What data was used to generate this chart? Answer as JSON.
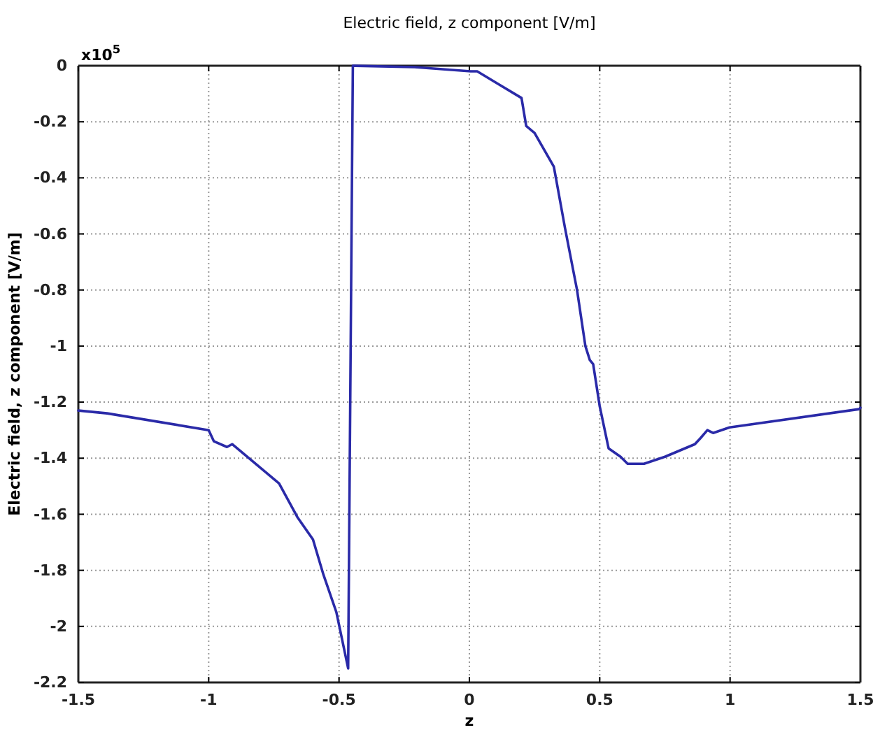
{
  "chart_data": {
    "type": "line",
    "title": "Electric field, z component [V/m]",
    "xlabel": "z",
    "ylabel": "Electric field, z component [V/m]",
    "annotations": [
      "x10$^{5}$"
    ],
    "xlim": [
      -1.5,
      1.5
    ],
    "xticks": [
      -1.5,
      -1,
      -0.5,
      0,
      0.5,
      1,
      1.5
    ],
    "ylim": [
      -2.2,
      0
    ],
    "yticks": [
      -2.2,
      -2,
      -1.8,
      -1.6,
      -1.4,
      -1.2,
      -1,
      -0.8,
      -0.6,
      -0.4,
      -0.2,
      0
    ],
    "grid": true,
    "marker": "none",
    "line_style": "solid",
    "series": [
      {
        "color": "#2a2aa8",
        "x": [
          -1.5,
          -1.39,
          -1.0,
          -0.98,
          -0.93,
          -0.91,
          -0.73,
          -0.66,
          -0.6,
          -0.56,
          -0.51,
          -0.465,
          -0.447,
          -0.21,
          0.005,
          0.03,
          0.11,
          0.2,
          0.218,
          0.25,
          0.324,
          0.367,
          0.413,
          0.445,
          0.462,
          0.475,
          0.5,
          0.534,
          0.58,
          0.607,
          0.67,
          0.75,
          0.865,
          0.885,
          0.913,
          0.935,
          0.998,
          1.495,
          1.5
        ],
        "values": [
          -1.23,
          -1.24,
          -1.3,
          -1.34,
          -1.36,
          -1.35,
          -1.49,
          -1.61,
          -1.69,
          -1.815,
          -1.95,
          -2.15,
          0,
          -0.005,
          -0.02,
          -0.02,
          -0.065,
          -0.115,
          -0.215,
          -0.24,
          -0.36,
          -0.58,
          -0.8,
          -1.0,
          -1.05,
          -1.065,
          -1.215,
          -1.365,
          -1.395,
          -1.42,
          -1.42,
          -1.395,
          -1.35,
          -1.33,
          -1.3,
          -1.31,
          -1.29,
          -1.225,
          -1.22
        ]
      }
    ]
  }
}
